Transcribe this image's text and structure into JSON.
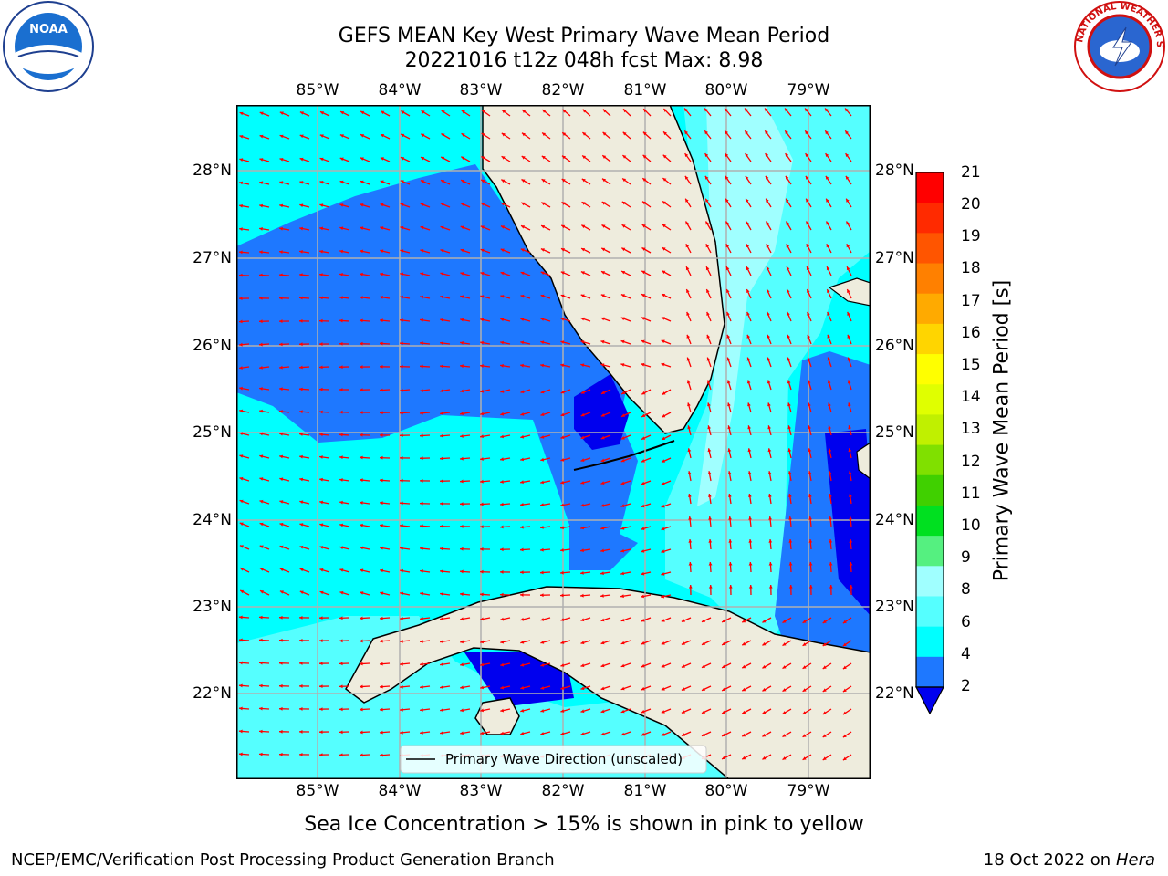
{
  "title": {
    "line1": "GEFS MEAN Key West Primary Wave Mean Period",
    "line2": "20221016 t12z 048h fcst   Max: 8.98"
  },
  "map": {
    "lon_labels": [
      "85°W",
      "84°W",
      "83°W",
      "82°W",
      "81°W",
      "80°W",
      "79°W"
    ],
    "lat_labels": [
      "28°N",
      "27°N",
      "26°N",
      "25°N",
      "24°N",
      "23°N",
      "22°N"
    ],
    "legend_label": "Primary Wave Direction (unscaled)",
    "colors": {
      "land": "#eeecdd",
      "ocean_2_4": "#1e78ff",
      "ocean_4_6": "#00ffff",
      "ocean_6_8": "#55ffff",
      "ocean_8_9": "#a0ffff",
      "ocean_lt2": "#0000ee",
      "arrows": "#ff0000",
      "grid": "#b0b0b0"
    }
  },
  "colorbar": {
    "label": "Primary Wave Mean Period [s]",
    "ticks": [
      "21",
      "20",
      "19",
      "18",
      "17",
      "16",
      "15",
      "14",
      "13",
      "12",
      "11",
      "10",
      "9",
      "8",
      "6",
      "4",
      "2"
    ],
    "colors": [
      "#ff0000",
      "#ff2a00",
      "#ff5500",
      "#ff8000",
      "#ffaa00",
      "#ffd500",
      "#ffff00",
      "#e0ff00",
      "#c0f000",
      "#80e000",
      "#40d000",
      "#00e020",
      "#55f080",
      "#a0ffff",
      "#55ffff",
      "#00ffff",
      "#1e78ff"
    ],
    "extend_color": "#0000ee"
  },
  "subtitle": "Sea Ice Concentration > 15% is shown in pink to yellow",
  "footer": {
    "left": "NCEP/EMC/Verification Post Processing Product Generation Branch",
    "right_date": "18 Oct 2022 on ",
    "right_host": "Hera"
  },
  "logos": {
    "noaa": "NOAA",
    "nws": "NATIONAL WEATHER SERVICE"
  }
}
